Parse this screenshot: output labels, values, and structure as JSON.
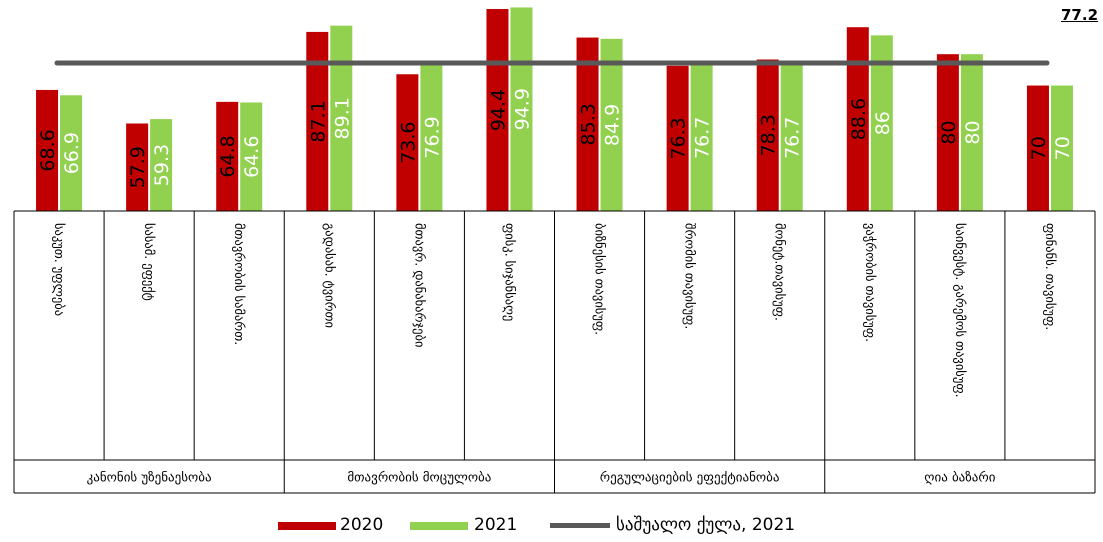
{
  "chart_data": {
    "type": "bar",
    "categories": [
      "საკუთ. უფლება",
      "სასამ. ეფექტ",
      "მთავრობის სამართ.",
      "გადასახ. ტვირთი",
      "მთავრ. დანახარჯები",
      "ფისკ. სიჯანსაღე",
      "ბიზნესის თავისუფ.",
      "შრომის თავისუფ.",
      "მონეტ.თავისუფ.",
      "ვაჭრობის თავისუფ.",
      "საინვესტ. გარემოს თავისუფ.",
      "ფინანს. თავისუფ."
    ],
    "groups": [
      {
        "label": "კანონის უზენაესობა",
        "count": 3
      },
      {
        "label": "მთავრობის მოცულობა",
        "count": 3
      },
      {
        "label": "რეგულაციების ეფექტიანობა",
        "count": 3
      },
      {
        "label": "ღია ბაზარი",
        "count": 3
      }
    ],
    "series": [
      {
        "name": "2020",
        "color": "#c00000",
        "values": [
          68.6,
          57.9,
          64.8,
          87.1,
          73.6,
          94.4,
          85.3,
          76.3,
          78.3,
          88.6,
          80,
          70
        ],
        "value_labels": [
          "68.6",
          "57.9",
          "64.8",
          "87.1",
          "73.6",
          "94.4",
          "85.3",
          "76.3",
          "78.3",
          "88.6",
          "80",
          "70"
        ]
      },
      {
        "name": "2021",
        "color": "#92d050",
        "values": [
          66.9,
          59.3,
          64.6,
          89.1,
          76.9,
          94.9,
          84.9,
          76.7,
          76.7,
          86,
          80,
          70
        ],
        "value_labels": [
          "66.9",
          "59.3",
          "64.6",
          "89.1",
          "76.9",
          "94.9",
          "84.9",
          "76.7",
          "76.7",
          "86",
          "80",
          "70"
        ]
      }
    ],
    "average": {
      "name": "საშუალო ქულა, 2021",
      "value": 77.2,
      "label": "77.2",
      "color": "#595959"
    },
    "ylim": [
      30,
      96
    ],
    "grid": false,
    "legend": "bottom"
  }
}
